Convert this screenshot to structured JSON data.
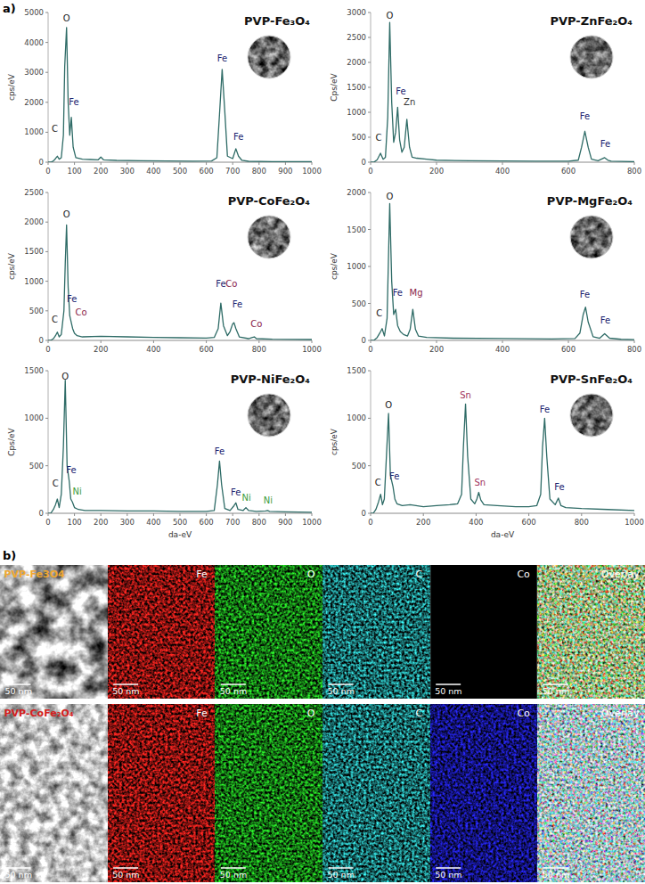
{
  "panel_labels": [
    "a)",
    "b)"
  ],
  "chart_data": [
    {
      "type": "line",
      "title": "PVP-Fe₃O₄",
      "y_label": "cps/eV",
      "xlim": [
        0,
        1000
      ],
      "xticks": [
        0,
        100,
        200,
        300,
        400,
        500,
        600,
        700,
        800,
        900,
        1000
      ],
      "ylim": [
        0,
        5000
      ],
      "yticks": [
        0,
        1000,
        2000,
        3000,
        4000,
        5000
      ],
      "x": [
        0,
        10,
        20,
        28,
        35,
        42,
        50,
        58,
        63,
        70,
        76,
        82,
        88,
        95,
        105,
        130,
        160,
        190,
        200,
        210,
        260,
        350,
        450,
        550,
        620,
        640,
        650,
        660,
        670,
        680,
        700,
        712,
        722,
        735,
        760,
        850,
        1000
      ],
      "series": [
        {
          "color": "#2e6b66",
          "values": [
            0,
            0,
            40,
            120,
            200,
            100,
            150,
            900,
            3200,
            4500,
            2000,
            900,
            1500,
            500,
            150,
            100,
            90,
            80,
            170,
            80,
            60,
            50,
            40,
            35,
            40,
            150,
            1600,
            3100,
            1700,
            200,
            120,
            450,
            200,
            60,
            30,
            20,
            15
          ]
        }
      ],
      "annotations": [
        {
          "text": "C",
          "x": 25,
          "y": 1000,
          "color": "#222222"
        },
        {
          "text": "O",
          "x": 70,
          "y": 4700,
          "color": "#222222"
        },
        {
          "text": "Fe",
          "x": 98,
          "y": 1900,
          "color": "#1c2470"
        },
        {
          "text": "Fe",
          "x": 660,
          "y": 3350,
          "color": "#1c2470"
        },
        {
          "text": "Fe",
          "x": 722,
          "y": 750,
          "color": "#1c2470"
        }
      ]
    },
    {
      "type": "line",
      "title": "PVP-ZnFe₂O₄",
      "y_label": "Cps/eV",
      "xlim": [
        0,
        800
      ],
      "xticks": [
        0,
        200,
        400,
        600,
        800
      ],
      "ylim": [
        0,
        3000
      ],
      "yticks": [
        0,
        500,
        1000,
        1500,
        2000,
        2500,
        3000
      ],
      "x": [
        0,
        10,
        20,
        30,
        38,
        45,
        52,
        58,
        64,
        70,
        76,
        82,
        88,
        95,
        102,
        110,
        118,
        126,
        140,
        170,
        200,
        300,
        400,
        500,
        600,
        630,
        640,
        650,
        660,
        670,
        690,
        710,
        720,
        730,
        760,
        800
      ],
      "series": [
        {
          "color": "#2e6b66",
          "values": [
            0,
            0,
            50,
            180,
            60,
            100,
            900,
            2800,
            1200,
            400,
            600,
            1100,
            450,
            200,
            300,
            860,
            300,
            100,
            80,
            60,
            40,
            30,
            25,
            20,
            20,
            40,
            300,
            620,
            300,
            60,
            30,
            90,
            40,
            20,
            15,
            10
          ]
        }
      ],
      "annotations": [
        {
          "text": "C",
          "x": 24,
          "y": 420,
          "color": "#222222"
        },
        {
          "text": "O",
          "x": 58,
          "y": 2870,
          "color": "#222222"
        },
        {
          "text": "Fe",
          "x": 92,
          "y": 1350,
          "color": "#1c2470"
        },
        {
          "text": "Zn",
          "x": 118,
          "y": 1150,
          "color": "#333333"
        },
        {
          "text": "Fe",
          "x": 650,
          "y": 850,
          "color": "#1c2470"
        },
        {
          "text": "Fe",
          "x": 712,
          "y": 300,
          "color": "#1c2470"
        }
      ]
    },
    {
      "type": "line",
      "title": "PVP-CoFe₂O₄",
      "y_label": "cps/eV",
      "xlim": [
        0,
        1000
      ],
      "xticks": [
        0,
        200,
        400,
        600,
        800,
        1000
      ],
      "ylim": [
        0,
        2500
      ],
      "yticks": [
        0,
        500,
        1000,
        1500,
        2000,
        2500
      ],
      "x": [
        0,
        10,
        20,
        28,
        35,
        42,
        50,
        60,
        65,
        70,
        76,
        82,
        88,
        93,
        100,
        110,
        130,
        200,
        300,
        400,
        500,
        600,
        630,
        645,
        655,
        665,
        680,
        690,
        700,
        705,
        712,
        725,
        760,
        775,
        782,
        790,
        850,
        1000
      ],
      "series": [
        {
          "color": "#2e6b66",
          "values": [
            0,
            0,
            30,
            80,
            140,
            60,
            100,
            500,
            1300,
            1950,
            900,
            420,
            300,
            200,
            120,
            80,
            60,
            70,
            60,
            50,
            45,
            40,
            50,
            200,
            630,
            250,
            80,
            150,
            280,
            300,
            200,
            60,
            30,
            50,
            60,
            30,
            20,
            15
          ]
        }
      ],
      "annotations": [
        {
          "text": "C",
          "x": 25,
          "y": 300,
          "color": "#222222"
        },
        {
          "text": "O",
          "x": 70,
          "y": 2080,
          "color": "#222222"
        },
        {
          "text": "Fe",
          "x": 90,
          "y": 650,
          "color": "#1c2470"
        },
        {
          "text": "Co",
          "x": 125,
          "y": 420,
          "color": "#8b1e4a"
        },
        {
          "text": "Fe",
          "x": 655,
          "y": 900,
          "color": "#1c2470"
        },
        {
          "text": "Co",
          "x": 695,
          "y": 900,
          "color": "#8b1e4a"
        },
        {
          "text": "Fe",
          "x": 718,
          "y": 560,
          "color": "#1c2470"
        },
        {
          "text": "Co",
          "x": 790,
          "y": 230,
          "color": "#8b1e4a"
        }
      ]
    },
    {
      "type": "line",
      "title": "PVP-MgFe₂O₄",
      "y_label": "cps/eV",
      "xlim": [
        0,
        800
      ],
      "xticks": [
        0,
        200,
        400,
        600,
        800
      ],
      "ylim": [
        0,
        2000
      ],
      "yticks": [
        0,
        500,
        1000,
        1500,
        2000
      ],
      "x": [
        0,
        10,
        20,
        28,
        35,
        42,
        50,
        58,
        64,
        70,
        76,
        82,
        90,
        100,
        112,
        120,
        128,
        136,
        145,
        170,
        250,
        400,
        550,
        620,
        635,
        645,
        652,
        660,
        675,
        695,
        710,
        725,
        760,
        800
      ],
      "series": [
        {
          "color": "#2e6b66",
          "values": [
            0,
            0,
            40,
            100,
            160,
            60,
            300,
            1850,
            800,
            350,
            420,
            200,
            120,
            80,
            60,
            150,
            420,
            150,
            60,
            40,
            30,
            25,
            20,
            25,
            100,
            350,
            450,
            250,
            50,
            30,
            90,
            30,
            15,
            10
          ]
        }
      ],
      "annotations": [
        {
          "text": "C",
          "x": 26,
          "y": 330,
          "color": "#222222"
        },
        {
          "text": "O",
          "x": 58,
          "y": 1900,
          "color": "#222222"
        },
        {
          "text": "Fe",
          "x": 82,
          "y": 600,
          "color": "#1c2470"
        },
        {
          "text": "Mg",
          "x": 138,
          "y": 600,
          "color": "#8b1e4a"
        },
        {
          "text": "Fe",
          "x": 650,
          "y": 580,
          "color": "#1c2470"
        },
        {
          "text": "Fe",
          "x": 712,
          "y": 230,
          "color": "#1c2470"
        }
      ]
    },
    {
      "type": "line",
      "title": "PVP-NiFe₂O₄",
      "y_label": "Cps/eV",
      "x_label": "da-eV",
      "xlim": [
        0,
        1000
      ],
      "xticks": [
        0,
        100,
        200,
        300,
        400,
        500,
        600,
        700,
        800,
        900,
        1000
      ],
      "ylim": [
        0,
        1500
      ],
      "yticks": [
        0,
        500,
        1000,
        1500
      ],
      "x": [
        0,
        10,
        20,
        28,
        35,
        42,
        50,
        58,
        65,
        72,
        80,
        86,
        92,
        100,
        115,
        140,
        200,
        300,
        400,
        500,
        600,
        630,
        642,
        650,
        658,
        670,
        690,
        705,
        712,
        720,
        740,
        750,
        760,
        790,
        825,
        832,
        840,
        900,
        1000
      ],
      "series": [
        {
          "color": "#2e6b66",
          "values": [
            0,
            0,
            40,
            90,
            150,
            60,
            200,
            700,
            1400,
            500,
            340,
            150,
            120,
            60,
            40,
            30,
            30,
            25,
            25,
            20,
            20,
            30,
            300,
            550,
            300,
            50,
            30,
            80,
            110,
            40,
            30,
            60,
            30,
            20,
            25,
            30,
            20,
            15,
            10
          ]
        }
      ],
      "annotations": [
        {
          "text": "C",
          "x": 28,
          "y": 280,
          "color": "#222222"
        },
        {
          "text": "O",
          "x": 65,
          "y": 1410,
          "color": "#222222"
        },
        {
          "text": "Fe",
          "x": 88,
          "y": 420,
          "color": "#1c2470"
        },
        {
          "text": "Ni",
          "x": 110,
          "y": 200,
          "color": "#3a9a3a"
        },
        {
          "text": "Fe",
          "x": 650,
          "y": 620,
          "color": "#1c2470"
        },
        {
          "text": "Fe",
          "x": 712,
          "y": 190,
          "color": "#1c2470"
        },
        {
          "text": "Ni",
          "x": 752,
          "y": 130,
          "color": "#3a9a3a"
        },
        {
          "text": "Ni",
          "x": 834,
          "y": 100,
          "color": "#3a9a3a"
        }
      ]
    },
    {
      "type": "line",
      "title": "PVP-SnFe₂O₄",
      "y_label": "cps/eV",
      "x_label": "da-eV",
      "xlim": [
        0,
        1000
      ],
      "xticks": [
        0,
        200,
        400,
        600,
        800,
        1000
      ],
      "ylim": [
        0,
        1500
      ],
      "yticks": [
        0,
        500,
        1000,
        1500
      ],
      "x": [
        0,
        10,
        20,
        30,
        38,
        45,
        52,
        60,
        68,
        75,
        85,
        92,
        100,
        120,
        150,
        200,
        250,
        300,
        330,
        345,
        352,
        360,
        368,
        380,
        395,
        403,
        410,
        418,
        430,
        480,
        550,
        600,
        630,
        645,
        652,
        660,
        668,
        680,
        700,
        712,
        722,
        740,
        800,
        900,
        1000
      ],
      "series": [
        {
          "color": "#2e6b66",
          "values": [
            0,
            0,
            40,
            120,
            200,
            90,
            150,
            600,
            1050,
            400,
            280,
            150,
            100,
            80,
            90,
            70,
            80,
            90,
            100,
            200,
            700,
            1150,
            600,
            150,
            100,
            150,
            220,
            140,
            90,
            80,
            70,
            70,
            80,
            200,
            700,
            1000,
            600,
            150,
            90,
            160,
            80,
            60,
            50,
            40,
            30
          ]
        }
      ],
      "annotations": [
        {
          "text": "C",
          "x": 28,
          "y": 290,
          "color": "#222222"
        },
        {
          "text": "O",
          "x": 68,
          "y": 1110,
          "color": "#222222"
        },
        {
          "text": "Fe",
          "x": 90,
          "y": 360,
          "color": "#1c2470"
        },
        {
          "text": "Sn",
          "x": 360,
          "y": 1210,
          "color": "#a0305a"
        },
        {
          "text": "Sn",
          "x": 415,
          "y": 290,
          "color": "#a0305a"
        },
        {
          "text": "Fe",
          "x": 660,
          "y": 1060,
          "color": "#1c2470"
        },
        {
          "text": "Fe",
          "x": 716,
          "y": 240,
          "color": "#1c2470"
        }
      ]
    }
  ],
  "maps": {
    "scale_bar": "50 nm",
    "overlay_label": "Overlay",
    "rows": [
      {
        "sample": "PVP-Fe3O4",
        "color": "#f0a830",
        "channels": [
          {
            "label": "Fe",
            "color": "#e0201c",
            "present": true
          },
          {
            "label": "O",
            "color": "#22c422",
            "present": true
          },
          {
            "label": "C",
            "color": "#2ab5b5",
            "present": true
          },
          {
            "label": "Co",
            "color": "#2020d0",
            "present": false
          }
        ]
      },
      {
        "sample": "PVP-CoFe₂O₄",
        "color": "#d42020",
        "channels": [
          {
            "label": "Fe",
            "color": "#e0201c",
            "present": true
          },
          {
            "label": "O",
            "color": "#22c422",
            "present": true
          },
          {
            "label": "C",
            "color": "#2ab5b5",
            "present": true
          },
          {
            "label": "Co",
            "color": "#2020d0",
            "present": true
          }
        ]
      }
    ]
  }
}
